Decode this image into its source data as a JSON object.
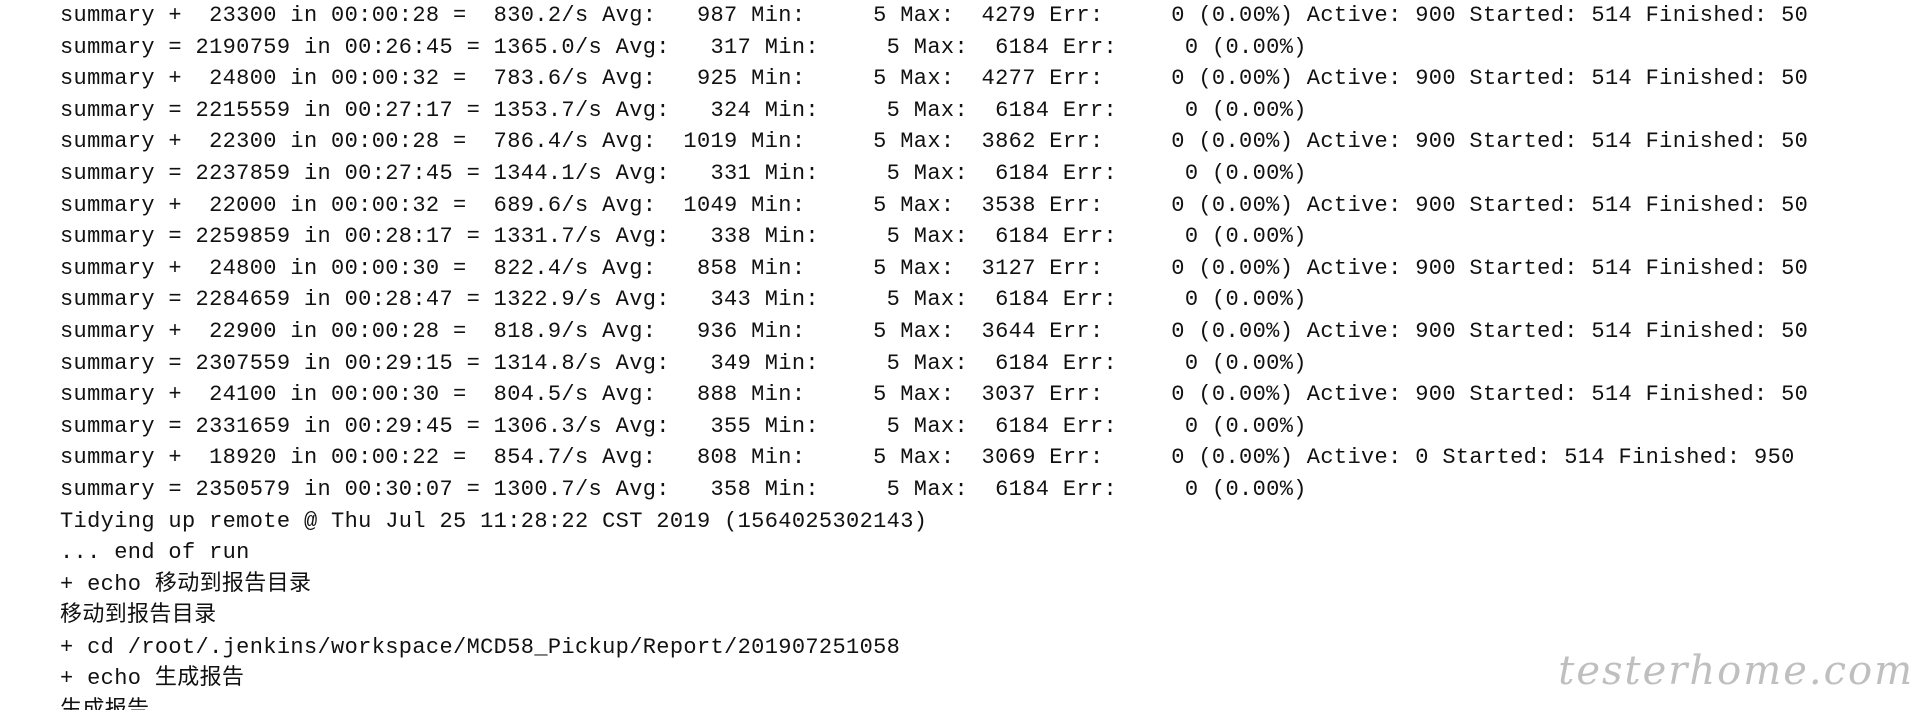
{
  "console": {
    "lines": [
      "summary +  23300 in 00:00:28 =  830.2/s Avg:   987 Min:     5 Max:  4279 Err:     0 (0.00%) Active: 900 Started: 514 Finished: 50",
      "summary = 2190759 in 00:26:45 = 1365.0/s Avg:   317 Min:     5 Max:  6184 Err:     0 (0.00%)",
      "summary +  24800 in 00:00:32 =  783.6/s Avg:   925 Min:     5 Max:  4277 Err:     0 (0.00%) Active: 900 Started: 514 Finished: 50",
      "summary = 2215559 in 00:27:17 = 1353.7/s Avg:   324 Min:     5 Max:  6184 Err:     0 (0.00%)",
      "summary +  22300 in 00:00:28 =  786.4/s Avg:  1019 Min:     5 Max:  3862 Err:     0 (0.00%) Active: 900 Started: 514 Finished: 50",
      "summary = 2237859 in 00:27:45 = 1344.1/s Avg:   331 Min:     5 Max:  6184 Err:     0 (0.00%)",
      "summary +  22000 in 00:00:32 =  689.6/s Avg:  1049 Min:     5 Max:  3538 Err:     0 (0.00%) Active: 900 Started: 514 Finished: 50",
      "summary = 2259859 in 00:28:17 = 1331.7/s Avg:   338 Min:     5 Max:  6184 Err:     0 (0.00%)",
      "summary +  24800 in 00:00:30 =  822.4/s Avg:   858 Min:     5 Max:  3127 Err:     0 (0.00%) Active: 900 Started: 514 Finished: 50",
      "summary = 2284659 in 00:28:47 = 1322.9/s Avg:   343 Min:     5 Max:  6184 Err:     0 (0.00%)",
      "summary +  22900 in 00:00:28 =  818.9/s Avg:   936 Min:     5 Max:  3644 Err:     0 (0.00%) Active: 900 Started: 514 Finished: 50",
      "summary = 2307559 in 00:29:15 = 1314.8/s Avg:   349 Min:     5 Max:  6184 Err:     0 (0.00%)",
      "summary +  24100 in 00:00:30 =  804.5/s Avg:   888 Min:     5 Max:  3037 Err:     0 (0.00%) Active: 900 Started: 514 Finished: 50",
      "summary = 2331659 in 00:29:45 = 1306.3/s Avg:   355 Min:     5 Max:  6184 Err:     0 (0.00%)",
      "summary +  18920 in 00:00:22 =  854.7/s Avg:   808 Min:     5 Max:  3069 Err:     0 (0.00%) Active: 0 Started: 514 Finished: 950",
      "summary = 2350579 in 00:30:07 = 1300.7/s Avg:   358 Min:     5 Max:  6184 Err:     0 (0.00%)",
      "Tidying up remote @ Thu Jul 25 11:28:22 CST 2019 (1564025302143)",
      "... end of run",
      "+ echo 移动到报告目录",
      "移动到报告目录",
      "+ cd /root/.jenkins/workspace/MCD58_Pickup/Report/201907251058",
      "+ echo 生成报告",
      "生成报告"
    ]
  },
  "watermark": {
    "text": "testerhome.com"
  }
}
